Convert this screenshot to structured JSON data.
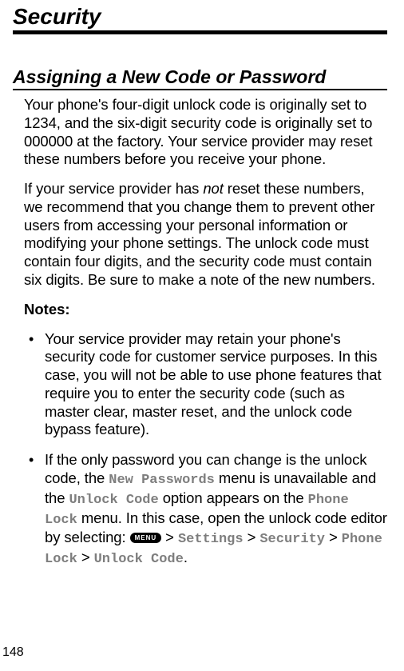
{
  "page": {
    "chapter_title": "Security",
    "section_title": "Assigning a New Code or Password",
    "para1": "Your phone's four-digit unlock code is originally set to 1234, and the six-digit security code is originally set to 000000 at the factory. Your service provider may reset these numbers before you receive your phone.",
    "para2_pre": "If your service provider has ",
    "para2_italic": "not",
    "para2_post": " reset these numbers, we recommend that you change them to prevent other users from accessing your personal information or modifying your phone settings. The unlock code must contain four digits, and the security code must contain six digits. Be sure to make a note of the new numbers.",
    "notes_label": "Notes:",
    "bullets": [
      {
        "text": "Your service provider may retain your phone's security code for customer service purposes. In this case, you will not be able to use phone features that require you to enter the security code (such as master clear, master reset, and the unlock code bypass feature)."
      }
    ],
    "bullet2": {
      "t1": "If the only password you can change is the unlock code, the ",
      "mono1": "New Passwords",
      "t2": " menu is unavailable and the ",
      "mono2": "Unlock Code",
      "t3": " option appears on the ",
      "mono3": "Phone Lock",
      "t4": " menu. In this case, open the unlock code editor by selecting: ",
      "menu_key": "MENU",
      "gt1": " > ",
      "mono4": "Settings",
      "gt2": " > ",
      "mono5": "Security",
      "gt3": " > ",
      "mono6": "Phone Lock",
      "gt4": " > ",
      "mono7": "Unlock Code",
      "period": "."
    },
    "page_number": "148"
  }
}
